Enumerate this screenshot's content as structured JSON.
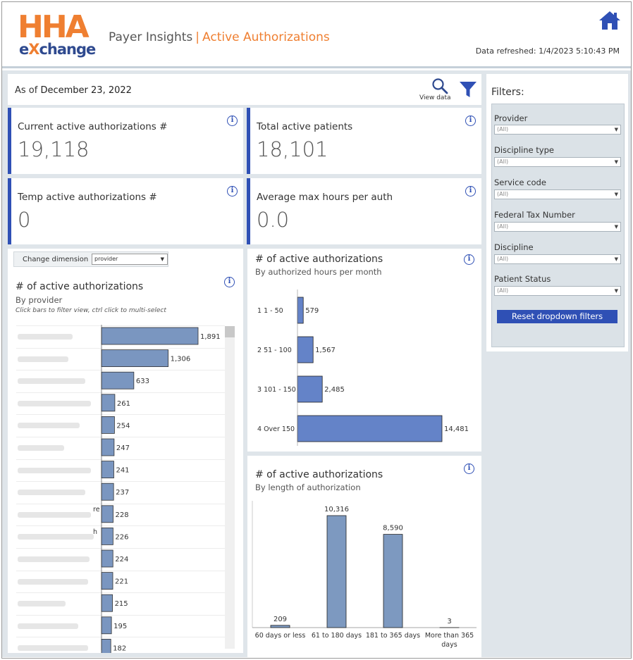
{
  "header": {
    "logo_top": "HHA",
    "logo_bottom_pre": "e",
    "logo_bottom_x": "X",
    "logo_bottom_post": "change",
    "title": "Payer Insights",
    "separator": "|",
    "subtitle": "Active Authorizations",
    "refreshed": "Data refreshed: 1/4/2023 5:10:43 PM",
    "home_icon": "home-icon"
  },
  "asof": {
    "label": "As of",
    "date": "December 23, 2022",
    "view_data": "View data"
  },
  "kpis": [
    {
      "label": "Current active authorizations #",
      "value": "19,118"
    },
    {
      "label": "Total active patients",
      "value": "18,101"
    },
    {
      "label": "Temp active authorizations #",
      "value": "0"
    },
    {
      "label": "Average max hours per auth",
      "value": "0.0"
    }
  ],
  "filters": {
    "title": "Filters:",
    "items": [
      {
        "label": "Provider",
        "value": "(All)"
      },
      {
        "label": "Discipline type",
        "value": "(All)"
      },
      {
        "label": "Service code",
        "value": "(All)"
      },
      {
        "label": "Federal Tax Number",
        "value": "(All)"
      },
      {
        "label": "Discipline",
        "value": "(All)"
      },
      {
        "label": "Patient Status",
        "value": "(All)"
      }
    ],
    "reset_label": "Reset dropdown filters"
  },
  "provider_chart": {
    "change_dimension_label": "Change dimension",
    "dimension_value": "provider",
    "title": "# of active authorizations",
    "subtitle": "By provider",
    "hint": "Click bars to filter view, ctrl click to multi-select",
    "partial_label_fragments": [
      "re",
      "h"
    ]
  },
  "hours_chart": {
    "title": "# of active authorizations",
    "subtitle": "By authorized hours per month"
  },
  "length_chart": {
    "title": "# of active authorizations",
    "subtitle": "By length of authorization"
  },
  "colors": {
    "accent_blue": "#2f50b5",
    "brand_orange": "#ef7f31",
    "bar_provider": "#7a96c0",
    "bar_hours": "#6483c8",
    "bar_length": "#7d99c0"
  },
  "chart_data": [
    {
      "type": "bar",
      "orientation": "horizontal",
      "values": [
        1891,
        1306,
        633,
        261,
        254,
        247,
        241,
        237,
        228,
        226,
        224,
        221,
        215,
        195,
        182
      ],
      "value_labels": [
        "1,891",
        "1,306",
        "633",
        "261",
        "254",
        "247",
        "241",
        "237",
        "228",
        "226",
        "224",
        "221",
        "215",
        "195",
        "182"
      ],
      "xlim": [
        0,
        1950
      ]
    },
    {
      "type": "bar",
      "orientation": "horizontal",
      "categories": [
        "1 1 - 50",
        "2 51 - 100",
        "3 101 - 150",
        "4 Over 150"
      ],
      "values": [
        579,
        1567,
        2485,
        14481
      ],
      "value_labels": [
        "579",
        "1,567",
        "2,485",
        "14,481"
      ],
      "xlim": [
        0,
        15000
      ]
    },
    {
      "type": "bar",
      "orientation": "vertical",
      "categories": [
        "60 days or less",
        "61 to 180 days",
        "181 to 365 days",
        "More than 365 days"
      ],
      "values": [
        209,
        10316,
        8590,
        3
      ],
      "value_labels": [
        "209",
        "10,316",
        "8,590",
        "3"
      ],
      "ylim": [
        0,
        11000
      ]
    }
  ]
}
